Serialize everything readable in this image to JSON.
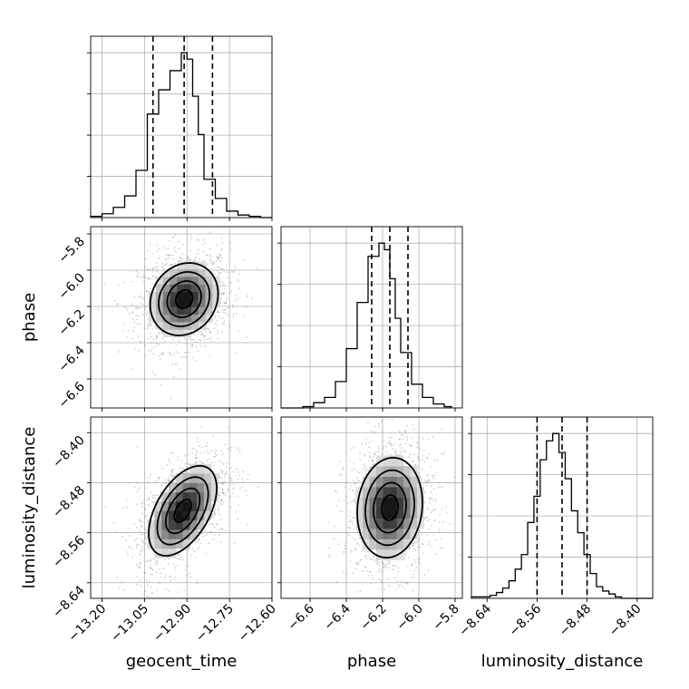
{
  "chart_data": {
    "type": "corner",
    "params": [
      "geocent_time",
      "phase",
      "luminosity_distance"
    ],
    "axis_labels": {
      "x": [
        "geocent_time",
        "phase",
        "luminosity_distance"
      ],
      "y": [
        "phase",
        "luminosity_distance"
      ]
    },
    "ranges": {
      "geocent_time": [
        -13.24,
        -12.6
      ],
      "phase": [
        -6.76,
        -5.76
      ],
      "luminosity_distance": [
        -8.665,
        -8.375
      ]
    },
    "ticks": {
      "geocent_time": [
        -13.2,
        -13.05,
        -12.9,
        -12.75,
        -12.6
      ],
      "phase": [
        -6.6,
        -6.4,
        -6.2,
        -6.0,
        -5.8
      ],
      "luminosity_distance": [
        -8.64,
        -8.56,
        -8.48,
        -8.4
      ]
    },
    "tick_labels": {
      "geocent_time": [
        "−13.20",
        "−13.05",
        "−12.90",
        "−12.75",
        "−12.60"
      ],
      "phase_x": [
        "−6.6",
        "−6.4",
        "−6.2",
        "−6.0",
        "−5.8"
      ],
      "phase_y": [
        "−5.8",
        "−6.0",
        "−6.2",
        "−6.4",
        "−6.6"
      ],
      "luminosity_distance": [
        "−8.64",
        "−8.56",
        "−8.48",
        "−8.40"
      ]
    },
    "histograms": [
      {
        "param": "geocent_time",
        "bin_edges": [
          -13.24,
          -13.2,
          -13.16,
          -13.12,
          -13.08,
          -13.04,
          -13.0,
          -12.96,
          -12.92,
          -12.9,
          -12.88,
          -12.86,
          -12.84,
          -12.8,
          -12.76,
          -12.72,
          -12.68,
          -12.64,
          -12.6
        ],
        "counts": [
          1,
          3,
          8,
          17,
          37,
          81,
          100,
          115,
          129,
          124,
          95,
          65,
          30,
          15,
          5,
          2,
          1,
          0
        ],
        "quantiles": [
          -13.02,
          -12.91,
          -12.81
        ]
      },
      {
        "param": "phase",
        "bin_edges": [
          -6.76,
          -6.64,
          -6.58,
          -6.52,
          -6.46,
          -6.4,
          -6.34,
          -6.28,
          -6.22,
          -6.19,
          -6.16,
          -6.13,
          -6.1,
          -6.04,
          -5.98,
          -5.92,
          -5.86,
          -5.82
        ],
        "counts": [
          0,
          1,
          4,
          8,
          20,
          45,
          80,
          115,
          125,
          120,
          98,
          68,
          42,
          18,
          8,
          3,
          1
        ],
        "quantiles": [
          -6.26,
          -6.16,
          -6.06
        ]
      },
      {
        "param": "luminosity_distance",
        "bin_edges": [
          -8.665,
          -8.645,
          -8.635,
          -8.625,
          -8.615,
          -8.605,
          -8.595,
          -8.585,
          -8.575,
          -8.565,
          -8.555,
          -8.545,
          -8.535,
          -8.525,
          -8.515,
          -8.505,
          -8.495,
          -8.485,
          -8.475,
          -8.465,
          -8.455,
          -8.445,
          -8.435,
          -8.425,
          -8.405,
          -8.375
        ],
        "counts": [
          1,
          1,
          2,
          4,
          7,
          12,
          20,
          30,
          52,
          70,
          95,
          108,
          113,
          100,
          82,
          60,
          45,
          30,
          17,
          8,
          5,
          3,
          1,
          0,
          0
        ],
        "quantiles": [
          -8.56,
          -8.52,
          -8.48
        ]
      }
    ],
    "contours_2d": [
      {
        "x_param": "geocent_time",
        "y_param": "phase",
        "center": [
          -12.91,
          -6.16
        ],
        "sigma": [
          0.06,
          0.1
        ],
        "correlation": 0.15,
        "levels": [
          0.5,
          1.0,
          1.5,
          2.0
        ]
      },
      {
        "x_param": "geocent_time",
        "y_param": "luminosity_distance",
        "center": [
          -12.915,
          -8.525
        ],
        "sigma": [
          0.06,
          0.036
        ],
        "correlation": 0.5,
        "levels": [
          0.5,
          1.0,
          1.5,
          2.0
        ]
      },
      {
        "x_param": "phase",
        "y_param": "luminosity_distance",
        "center": [
          -6.16,
          -8.52
        ],
        "sigma": [
          0.09,
          0.04
        ],
        "correlation": 0.1,
        "levels": [
          0.5,
          1.0,
          1.5,
          2.0
        ]
      }
    ],
    "grid": true,
    "legend": "none"
  }
}
